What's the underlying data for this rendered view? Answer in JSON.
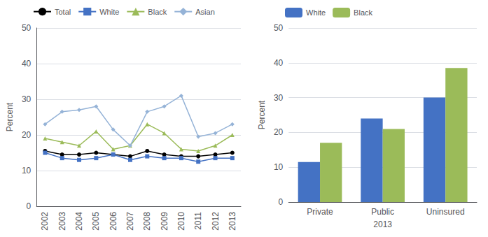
{
  "chart_data": [
    {
      "type": "line",
      "x": [
        2002,
        2003,
        2004,
        2005,
        2006,
        2007,
        2008,
        2009,
        2010,
        2011,
        2012,
        2013
      ],
      "series": [
        {
          "name": "Total",
          "color": "#000000",
          "marker": "circle",
          "values": [
            15.5,
            14.5,
            14.5,
            15.0,
            14.5,
            14.0,
            15.5,
            14.5,
            14.0,
            14.0,
            14.5,
            15.0
          ]
        },
        {
          "name": "White",
          "color": "#4472c4",
          "marker": "square",
          "values": [
            15.0,
            13.5,
            13.0,
            13.5,
            14.5,
            13.0,
            14.0,
            13.5,
            13.5,
            12.5,
            13.5,
            13.5
          ]
        },
        {
          "name": "Black",
          "color": "#9bbb59",
          "marker": "triangle",
          "values": [
            19.0,
            18.0,
            17.0,
            21.0,
            16.0,
            17.0,
            23.0,
            20.5,
            16.0,
            15.5,
            17.0,
            20.0
          ]
        },
        {
          "name": "Asian",
          "color": "#95b3d7",
          "marker": "diamond",
          "values": [
            23.0,
            26.5,
            27.0,
            28.0,
            21.5,
            17.0,
            26.5,
            28.0,
            31.0,
            19.5,
            20.5,
            23.0
          ]
        }
      ],
      "xlim": [
        2001.5,
        2013.5
      ],
      "xticks": [
        2002,
        2003,
        2004,
        2005,
        2006,
        2007,
        2008,
        2009,
        2010,
        2011,
        2012,
        2013
      ],
      "ylabel": "Percent",
      "ylim": [
        0,
        50
      ],
      "yticks": [
        0,
        10,
        20,
        30,
        40,
        50
      ],
      "grid": true,
      "legend": "upper left"
    },
    {
      "type": "bar",
      "categories": [
        "Private",
        "Public",
        "Uninsured"
      ],
      "series": [
        {
          "name": "White",
          "color": "#4472c4",
          "values": [
            11.5,
            24.0,
            30.0
          ]
        },
        {
          "name": "Black",
          "color": "#9bbb59",
          "values": [
            17.0,
            21.0,
            38.5
          ]
        }
      ],
      "xlabel": "2013",
      "ylabel": "Percent",
      "ylim": [
        0,
        50
      ],
      "yticks": [
        0,
        10,
        20,
        30,
        40,
        50
      ],
      "grid": true,
      "legend": "upper left"
    }
  ]
}
